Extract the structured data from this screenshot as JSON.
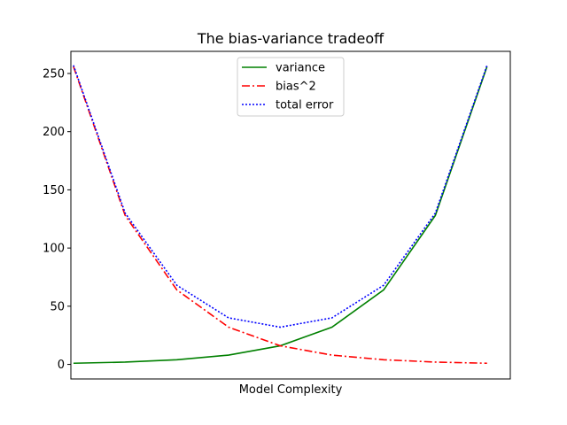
{
  "chart_data": {
    "type": "line",
    "title": "The bias-variance tradeoff",
    "xlabel": "Model Complexity",
    "ylabel": "",
    "x": [
      1,
      2,
      3,
      4,
      5,
      6,
      7,
      8,
      9
    ],
    "xlim": [
      0.95,
      9.45
    ],
    "ylim": [
      -12.5,
      269
    ],
    "yticks": [
      0,
      50,
      100,
      150,
      200,
      250
    ],
    "xticks": [],
    "grid": false,
    "legend_position": "top-center",
    "series": [
      {
        "name": "variance",
        "values": [
          1,
          2,
          4,
          8,
          16,
          32,
          64,
          128,
          256
        ],
        "color": "#008000",
        "style": "solid"
      },
      {
        "name": "bias^2",
        "values": [
          256,
          128,
          64,
          32,
          16,
          8,
          4,
          2,
          1
        ],
        "color": "#ff0000",
        "style": "dashdot"
      },
      {
        "name": "total error",
        "values": [
          257,
          130,
          68,
          40,
          32,
          40,
          68,
          130,
          257
        ],
        "color": "#0000ff",
        "style": "dotted"
      }
    ]
  }
}
